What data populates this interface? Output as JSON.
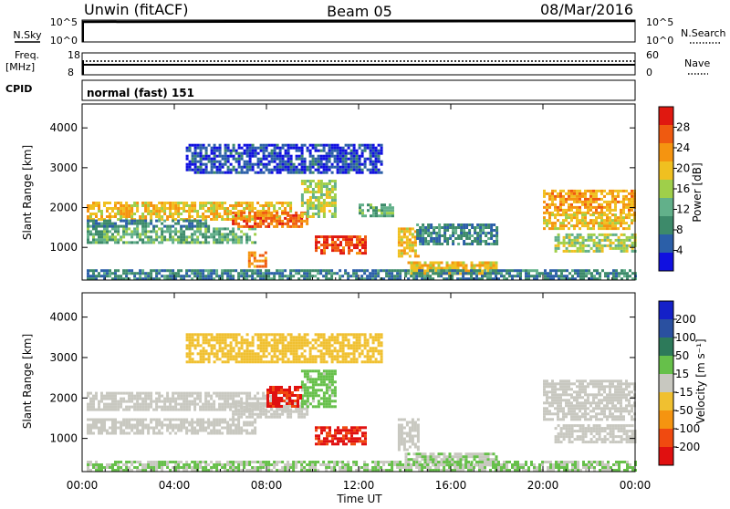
{
  "header": {
    "station": "Unwin (fitACF)",
    "beam": "Beam 05",
    "date": "08/Mar/2016"
  },
  "status_panels": {
    "nsky_label": "N.Sky",
    "nsky_ticks": [
      "10^5",
      "10^0"
    ],
    "nsearch_label": "N.Search",
    "nsearch_ticks": [
      "10^5",
      "10^0"
    ],
    "freq_label": "Freq.",
    "freq_unit": "[MHz]",
    "freq_ticks": [
      "18",
      "8"
    ],
    "nave_label": "Nave",
    "nave_ticks": [
      "60",
      "0"
    ],
    "cpid_label": "CPID",
    "cpid_value": "normal (fast) 151"
  },
  "colors": {
    "power_scale": [
      "#1010e0",
      "#2b5fa8",
      "#3d8a6a",
      "#62b08a",
      "#9fcf4a",
      "#f0c020",
      "#f59410",
      "#ef5a10",
      "#e01810"
    ],
    "velocity_scale": [
      "#1420c8",
      "#2a50a0",
      "#2d7a5a",
      "#66c04a",
      "#c8c8c0",
      "#f0c030",
      "#f59410",
      "#f04a10",
      "#e01010"
    ]
  },
  "chart_data": [
    {
      "type": "heatmap",
      "name": "power",
      "ylabel": "Slant Range [km]",
      "xlabel": "",
      "x_ticks": [
        "00:00",
        "04:00",
        "08:00",
        "12:00",
        "16:00",
        "20:00",
        "00:00"
      ],
      "x_range_hours": [
        0,
        24
      ],
      "y_ticks": [
        1000,
        2000,
        3000,
        4000
      ],
      "y_range": [
        180,
        4600
      ],
      "colorbar": {
        "label": "Power [dB]",
        "ticks": [
          4,
          8,
          12,
          16,
          20,
          24,
          28
        ],
        "range": [
          0,
          32
        ]
      },
      "regions": [
        {
          "t": [
            0.2,
            9.0
          ],
          "r": [
            1700,
            2150
          ],
          "v": 20
        },
        {
          "t": [
            0.2,
            7.5
          ],
          "r": [
            1150,
            1500
          ],
          "v": 12
        },
        {
          "t": [
            0.2,
            5.5
          ],
          "r": [
            1550,
            1700
          ],
          "v": 8
        },
        {
          "t": [
            6.5,
            9.8
          ],
          "r": [
            1550,
            1900
          ],
          "v": 26
        },
        {
          "t": [
            10.1,
            12.3
          ],
          "r": [
            850,
            1300
          ],
          "v": 28
        },
        {
          "t": [
            9.5,
            11.0
          ],
          "r": [
            1800,
            2700
          ],
          "v": 16
        },
        {
          "t": [
            7.2,
            8.0
          ],
          "r": [
            500,
            900
          ],
          "v": 24
        },
        {
          "t": [
            13.7,
            14.6
          ],
          "r": [
            750,
            1500
          ],
          "v": 20
        },
        {
          "t": [
            12.0,
            13.5
          ],
          "r": [
            1800,
            2100
          ],
          "v": 12
        },
        {
          "t": [
            14.0,
            18.0
          ],
          "r": [
            350,
            650
          ],
          "v": 20
        },
        {
          "t": [
            0.2,
            24.0
          ],
          "r": [
            200,
            450
          ],
          "v": 8
        },
        {
          "t": [
            20.0,
            24.0
          ],
          "r": [
            1900,
            2450
          ],
          "v": 22
        },
        {
          "t": [
            20.0,
            24.0
          ],
          "r": [
            1500,
            1850
          ],
          "v": 20
        },
        {
          "t": [
            20.5,
            24.0
          ],
          "r": [
            900,
            1350
          ],
          "v": 16
        },
        {
          "t": [
            4.5,
            13.0
          ],
          "r": [
            2900,
            3600
          ],
          "v": 4
        },
        {
          "t": [
            14.5,
            18.0
          ],
          "r": [
            1100,
            1600
          ],
          "v": 8
        }
      ]
    },
    {
      "type": "heatmap",
      "name": "velocity",
      "ylabel": "Slant Range [km]",
      "xlabel": "Time UT",
      "x_ticks": [
        "00:00",
        "04:00",
        "08:00",
        "12:00",
        "16:00",
        "20:00",
        "00:00"
      ],
      "x_range_hours": [
        0,
        24
      ],
      "y_ticks": [
        1000,
        2000,
        3000,
        4000
      ],
      "y_range": [
        180,
        4600
      ],
      "colorbar": {
        "label": "Velocity [m s⁻¹]",
        "ticks": [
          200,
          100,
          50,
          15,
          -15,
          -50,
          -100,
          -200
        ],
        "range": [
          -250,
          250
        ]
      },
      "regions": [
        {
          "t": [
            0.2,
            9.0
          ],
          "r": [
            1700,
            2150
          ],
          "v": 0
        },
        {
          "t": [
            0.2,
            7.5
          ],
          "r": [
            1150,
            1500
          ],
          "v": 0
        },
        {
          "t": [
            6.5,
            9.8
          ],
          "r": [
            1550,
            1900
          ],
          "v": 0
        },
        {
          "t": [
            10.1,
            12.3
          ],
          "r": [
            850,
            1300
          ],
          "v": -200
        },
        {
          "t": [
            9.5,
            11.0
          ],
          "r": [
            1800,
            2700
          ],
          "v": 40
        },
        {
          "t": [
            8.0,
            9.5
          ],
          "r": [
            1800,
            2300
          ],
          "v": -200
        },
        {
          "t": [
            13.7,
            14.6
          ],
          "r": [
            750,
            1500
          ],
          "v": 0
        },
        {
          "t": [
            14.0,
            18.0
          ],
          "r": [
            350,
            650
          ],
          "v": 25
        },
        {
          "t": [
            0.2,
            24.0
          ],
          "r": [
            200,
            450
          ],
          "v": 30
        },
        {
          "t": [
            20.0,
            24.0
          ],
          "r": [
            1500,
            2450
          ],
          "v": 0
        },
        {
          "t": [
            20.5,
            24.0
          ],
          "r": [
            900,
            1350
          ],
          "v": 0
        },
        {
          "t": [
            4.5,
            13.0
          ],
          "r": [
            2900,
            3600
          ],
          "v": -60
        }
      ]
    }
  ]
}
